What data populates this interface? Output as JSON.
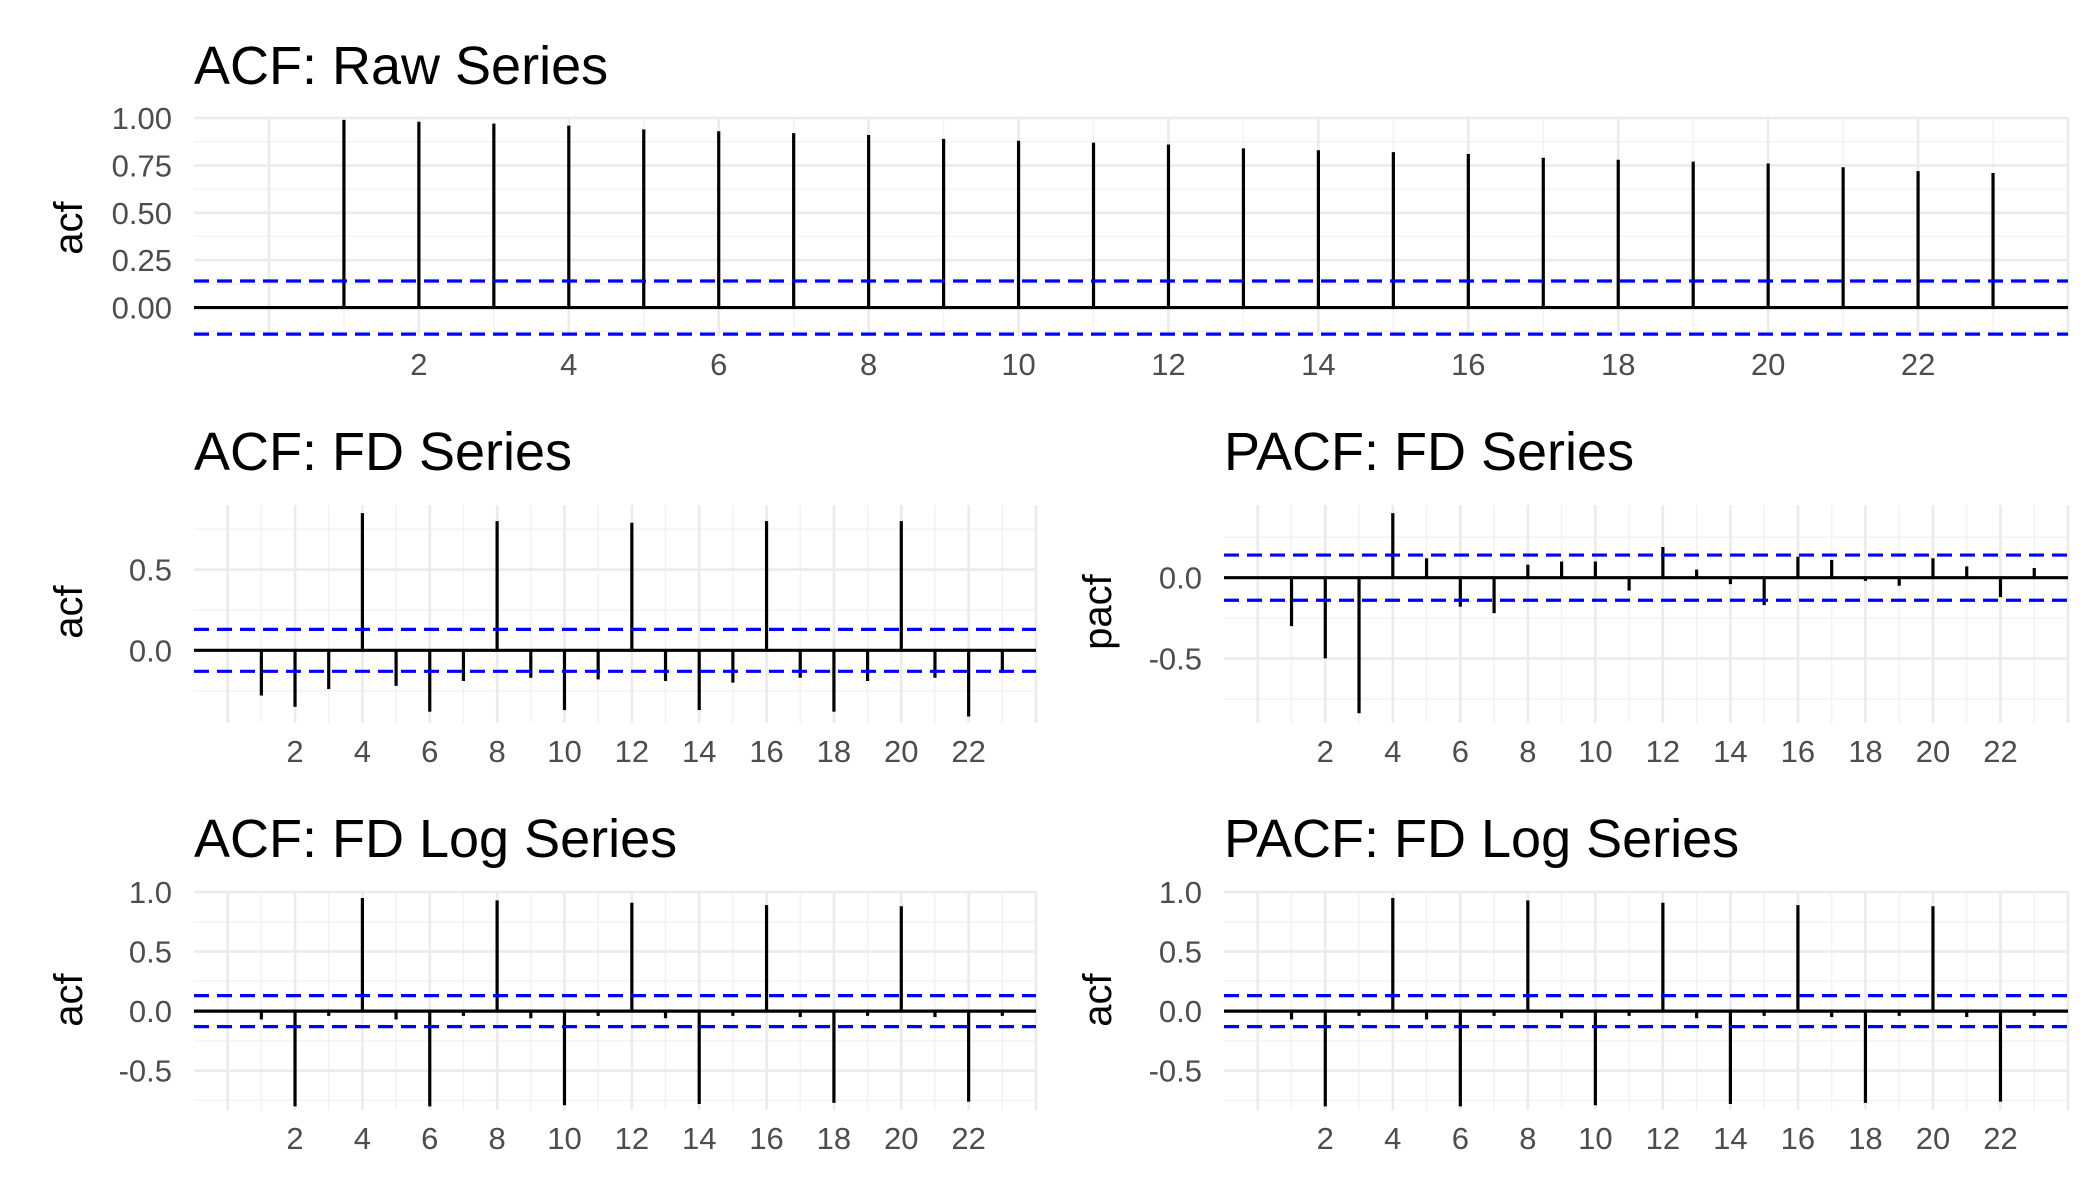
{
  "colors": {
    "ci_line": "#0000ff",
    "stem": "#000000",
    "grid": "#ebebeb"
  },
  "chart_data": [
    {
      "id": "p1",
      "type": "bar",
      "title": "ACF: Raw Series",
      "ylabel": "acf",
      "xticks": [
        2,
        4,
        6,
        8,
        10,
        12,
        14,
        16,
        18,
        20,
        22
      ],
      "yticks": [
        0.0,
        0.25,
        0.5,
        0.75,
        1.0
      ],
      "ytick_labels": [
        "0.00",
        "0.25",
        "0.50",
        "0.75",
        "1.00"
      ],
      "xlim": [
        -1,
        24
      ],
      "ylim": [
        -0.15,
        1.0
      ],
      "ci": 0.14,
      "lags": [
        1,
        2,
        3,
        4,
        5,
        6,
        7,
        8,
        9,
        10,
        11,
        12,
        13,
        14,
        15,
        16,
        17,
        18,
        19,
        20,
        21,
        22,
        23
      ],
      "values": [
        0.99,
        0.98,
        0.97,
        0.96,
        0.94,
        0.93,
        0.92,
        0.91,
        0.89,
        0.88,
        0.87,
        0.86,
        0.84,
        0.83,
        0.82,
        0.81,
        0.79,
        0.78,
        0.77,
        0.76,
        0.74,
        0.72,
        0.71
      ]
    },
    {
      "id": "p2",
      "type": "bar",
      "title": "ACF: FD Series",
      "ylabel": "acf",
      "xticks": [
        2,
        4,
        6,
        8,
        10,
        12,
        14,
        16,
        18,
        20,
        22
      ],
      "yticks": [
        0.0,
        0.5
      ],
      "ytick_labels": [
        "0.0",
        "0.5"
      ],
      "xlim": [
        -1,
        24
      ],
      "ylim": [
        -0.45,
        0.9
      ],
      "ci": 0.13,
      "lags": [
        1,
        2,
        3,
        4,
        5,
        6,
        7,
        8,
        9,
        10,
        11,
        12,
        13,
        14,
        15,
        16,
        17,
        18,
        19,
        20,
        21,
        22,
        23
      ],
      "values": [
        -0.28,
        -0.35,
        -0.24,
        0.85,
        -0.22,
        -0.38,
        -0.19,
        0.8,
        -0.17,
        -0.37,
        -0.18,
        0.79,
        -0.19,
        -0.37,
        -0.2,
        0.8,
        -0.17,
        -0.38,
        -0.19,
        0.8,
        -0.17,
        -0.41,
        -0.14
      ]
    },
    {
      "id": "p3",
      "type": "bar",
      "title": "PACF: FD Series",
      "ylabel": "pacf",
      "xticks": [
        2,
        4,
        6,
        8,
        10,
        12,
        14,
        16,
        18,
        20,
        22
      ],
      "yticks": [
        -0.5,
        0.0
      ],
      "ytick_labels": [
        "-0.5",
        "0.0"
      ],
      "xlim": [
        -1,
        24
      ],
      "ylim": [
        -0.9,
        0.45
      ],
      "ci": 0.14,
      "lags": [
        1,
        2,
        3,
        4,
        5,
        6,
        7,
        8,
        9,
        10,
        11,
        12,
        13,
        14,
        15,
        16,
        17,
        18,
        19,
        20,
        21,
        22,
        23
      ],
      "values": [
        -0.3,
        -0.5,
        -0.84,
        0.4,
        0.12,
        -0.18,
        -0.22,
        0.08,
        0.1,
        0.1,
        -0.08,
        0.19,
        0.05,
        -0.04,
        -0.17,
        0.13,
        0.11,
        -0.02,
        -0.05,
        0.12,
        0.07,
        -0.12,
        0.06
      ]
    },
    {
      "id": "p4",
      "type": "bar",
      "title": "ACF: FD Log Series",
      "ylabel": "acf",
      "xticks": [
        2,
        4,
        6,
        8,
        10,
        12,
        14,
        16,
        18,
        20,
        22
      ],
      "yticks": [
        -0.5,
        0.0,
        0.5,
        1.0
      ],
      "ytick_labels": [
        "-0.5",
        "0.0",
        "0.5",
        "1.0"
      ],
      "xlim": [
        -1,
        24
      ],
      "ylim": [
        -0.83,
        1.0
      ],
      "ci": 0.13,
      "lags": [
        1,
        2,
        3,
        4,
        5,
        6,
        7,
        8,
        9,
        10,
        11,
        12,
        13,
        14,
        15,
        16,
        17,
        18,
        19,
        20,
        21,
        22,
        23
      ],
      "values": [
        -0.07,
        -0.8,
        -0.04,
        0.95,
        -0.07,
        -0.8,
        -0.04,
        0.93,
        -0.06,
        -0.79,
        -0.04,
        0.91,
        -0.06,
        -0.78,
        -0.04,
        0.89,
        -0.05,
        -0.77,
        -0.04,
        0.88,
        -0.05,
        -0.76,
        -0.04
      ]
    },
    {
      "id": "p5",
      "type": "bar",
      "title": "PACF: FD Log Series",
      "ylabel": "acf",
      "xticks": [
        2,
        4,
        6,
        8,
        10,
        12,
        14,
        16,
        18,
        20,
        22
      ],
      "yticks": [
        -0.5,
        0.0,
        0.5,
        1.0
      ],
      "ytick_labels": [
        "-0.5",
        "0.0",
        "0.5",
        "1.0"
      ],
      "xlim": [
        -1,
        24
      ],
      "ylim": [
        -0.83,
        1.0
      ],
      "ci": 0.13,
      "lags": [
        1,
        2,
        3,
        4,
        5,
        6,
        7,
        8,
        9,
        10,
        11,
        12,
        13,
        14,
        15,
        16,
        17,
        18,
        19,
        20,
        21,
        22,
        23
      ],
      "values": [
        -0.07,
        -0.8,
        -0.04,
        0.95,
        -0.07,
        -0.8,
        -0.04,
        0.93,
        -0.06,
        -0.79,
        -0.04,
        0.91,
        -0.06,
        -0.78,
        -0.04,
        0.89,
        -0.05,
        -0.77,
        -0.04,
        0.88,
        -0.05,
        -0.76,
        -0.04
      ]
    }
  ]
}
